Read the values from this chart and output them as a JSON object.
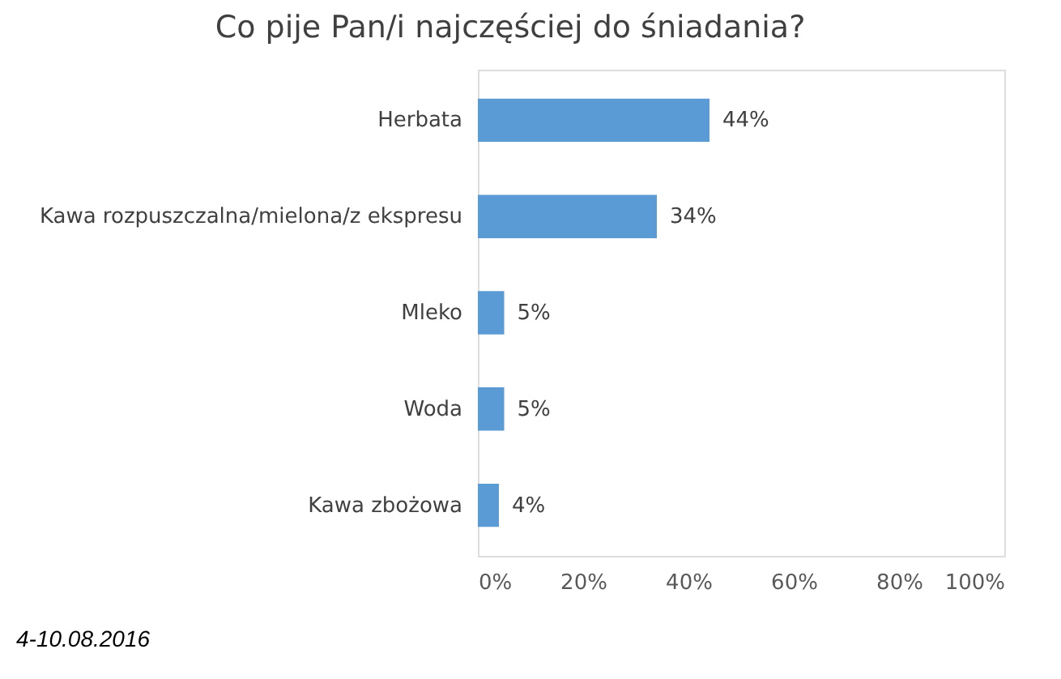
{
  "chart_data": {
    "type": "bar",
    "orientation": "horizontal",
    "title": "Co pije Pan/i najczęściej do śniadania?",
    "categories": [
      "Herbata",
      "Kawa rozpuszczalna/mielona/z ekspresu",
      "Mleko",
      "Woda",
      "Kawa zbożowa"
    ],
    "values": [
      44,
      34,
      5,
      5,
      4
    ],
    "value_labels": [
      "44%",
      "34%",
      "5%",
      "5%",
      "4%"
    ],
    "color": "#5b9bd5",
    "xlim": [
      0,
      100
    ],
    "xticks": [
      {
        "value": 0,
        "label": "0%"
      },
      {
        "value": 20,
        "label": "20%"
      },
      {
        "value": 40,
        "label": "40%"
      },
      {
        "value": 60,
        "label": "60%"
      },
      {
        "value": 80,
        "label": "80%"
      },
      {
        "value": 100,
        "label": "100%"
      }
    ],
    "grid": false,
    "annotations": [
      "4-10.08.2016"
    ]
  }
}
